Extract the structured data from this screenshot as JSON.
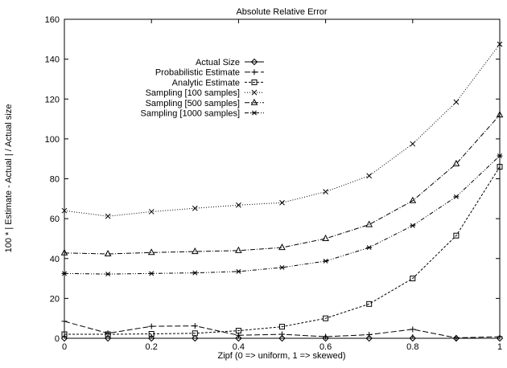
{
  "chart_data": {
    "type": "line",
    "title": "Absolute Relative Error",
    "xlabel": "Zipf (0 => uniform, 1 => skewed)",
    "ylabel": "100 * | Estimate - Actual | / Actual size",
    "xlim": [
      0,
      1
    ],
    "ylim": [
      0,
      160
    ],
    "xticks": [
      "0",
      "0.2",
      "0.4",
      "0.6",
      "0.8",
      "1"
    ],
    "yticks": [
      "0",
      "20",
      "40",
      "60",
      "80",
      "100",
      "120",
      "140",
      "160"
    ],
    "grid": false,
    "legend_position": "top-left",
    "x": [
      0,
      0.1,
      0.2,
      0.3,
      0.4,
      0.5,
      0.6,
      0.7,
      0.8,
      0.9,
      1.0
    ],
    "series": [
      {
        "name": "Actual Size",
        "marker": "diamond",
        "dash": "solid",
        "values": [
          0,
          0,
          0,
          0,
          0,
          0,
          0,
          0,
          0,
          0,
          0
        ]
      },
      {
        "name": "Probabilistic Estimate",
        "marker": "plus",
        "dash": "longdash",
        "values": [
          8.5,
          2.5,
          6,
          6.2,
          1.5,
          2,
          0.8,
          1.8,
          4.5,
          0.2,
          0.8
        ]
      },
      {
        "name": "Analytic Estimate",
        "marker": "square",
        "dash": "shortdash",
        "values": [
          2,
          2,
          2.2,
          2.5,
          3.8,
          5.8,
          10,
          17.2,
          30,
          51.5,
          86
        ]
      },
      {
        "name": "Sampling [100 samples]",
        "marker": "cross",
        "dash": "dotted",
        "values": [
          64,
          61.2,
          63.5,
          65.2,
          66.8,
          68,
          73.5,
          81.5,
          97.5,
          118.5,
          147.5
        ]
      },
      {
        "name": "Sampling [500 samples]",
        "marker": "triangle",
        "dash": "dashdot",
        "values": [
          42.8,
          42.3,
          43,
          43.5,
          44,
          45.5,
          50,
          57,
          69,
          87.5,
          112
        ]
      },
      {
        "name": "Sampling [1000 samples]",
        "marker": "asterisk",
        "dash": "dashdotdot",
        "values": [
          32.5,
          32.2,
          32.5,
          32.8,
          33.5,
          35.5,
          38.7,
          45.5,
          56.5,
          71,
          91.5
        ]
      }
    ]
  }
}
